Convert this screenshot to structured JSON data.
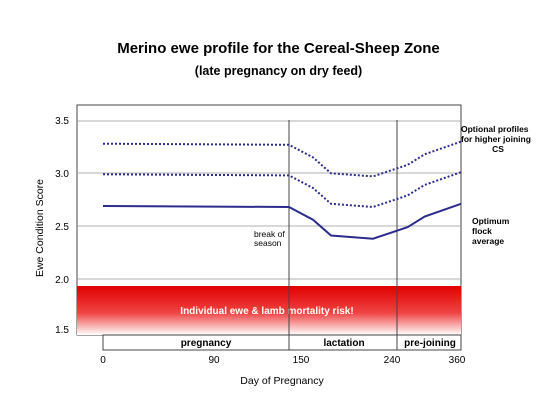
{
  "chart_data": {
    "type": "line",
    "title": "Merino ewe profile for the Cereal-Sheep Zone",
    "subtitle": "(late pregnancy on dry feed)",
    "xlabel": "Day of Pregnancy",
    "ylabel": "Ewe Condition Score",
    "x_ticks": [
      "0",
      "90",
      "150",
      "240",
      "360"
    ],
    "y_ticks": [
      "3.5",
      "3.0",
      "2.5",
      "2.0",
      "1.5"
    ],
    "ylim": [
      1.45,
      3.55
    ],
    "grid": "horizontal",
    "series": [
      {
        "style": "dotted",
        "color": "#2c2c8c",
        "x": [
          0,
          150,
          170,
          185,
          220,
          260,
          292,
          360
        ],
        "y": [
          3.28,
          3.27,
          3.15,
          3.0,
          2.97,
          3.08,
          3.18,
          3.3
        ]
      },
      {
        "style": "dotted",
        "color": "#2c2c8c",
        "x": [
          0,
          150,
          170,
          185,
          220,
          260,
          292,
          360
        ],
        "y": [
          2.99,
          2.98,
          2.86,
          2.71,
          2.68,
          2.79,
          2.89,
          3.01
        ]
      },
      {
        "style": "solid",
        "color": "#2c2c8c",
        "x": [
          0,
          150,
          170,
          185,
          220,
          260,
          292,
          360
        ],
        "y": [
          2.69,
          2.68,
          2.56,
          2.41,
          2.38,
          2.49,
          2.59,
          2.71
        ]
      }
    ],
    "phases": [
      {
        "label": "pregnancy",
        "start": 0,
        "end": 150
      },
      {
        "label": "lactation",
        "start": 150,
        "end": 240
      },
      {
        "label": "pre-joining",
        "start": 240,
        "end": 360
      }
    ],
    "annotations": {
      "break_of_season": [
        "break of",
        "season"
      ],
      "optional_profiles": [
        "Optional profiles",
        "for higher joining",
        "CS"
      ],
      "optimum": [
        "Optimum",
        "flock",
        "average"
      ]
    },
    "risk_band": {
      "label": "Individual ewe & lamb mortality risk!",
      "from": 1.45,
      "to": 1.95,
      "color_top": "#e00000",
      "color_bottom": "#ffffff"
    }
  }
}
